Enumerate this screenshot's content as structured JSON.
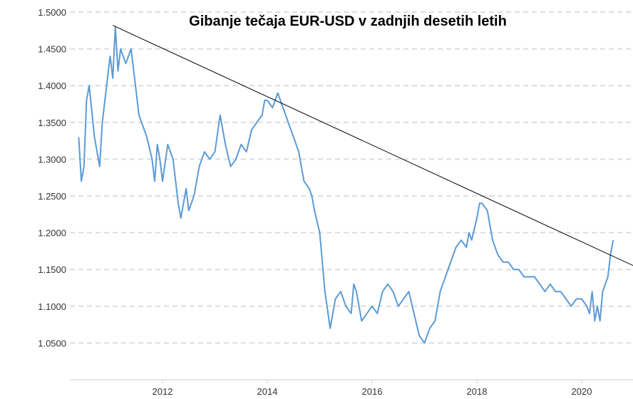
{
  "chart_data": {
    "type": "line",
    "title": "Gibanje tečaja EUR-USD v zadnjih desetih letih",
    "xlabel": "",
    "ylabel": "",
    "xlim": [
      2010.35,
      2020.65
    ],
    "ylim": [
      1.0,
      1.5
    ],
    "grid": true,
    "y_ticks": [
      "1.5000",
      "1.4500",
      "1.4000",
      "1.3500",
      "1.3000",
      "1.2500",
      "1.2000",
      "1.1500",
      "1.1000",
      "1.0500"
    ],
    "x_ticks": [
      "2012",
      "2014",
      "2016",
      "2018",
      "2020"
    ],
    "series": [
      {
        "color": "#5b9bd5",
        "x": [
          2010.4,
          2010.45,
          2010.5,
          2010.55,
          2010.6,
          2010.7,
          2010.8,
          2010.85,
          2010.9,
          2010.95,
          2011.0,
          2011.05,
          2011.1,
          2011.15,
          2011.2,
          2011.3,
          2011.4,
          2011.5,
          2011.55,
          2011.6,
          2011.7,
          2011.8,
          2011.85,
          2011.9,
          2011.95,
          2012.0,
          2012.1,
          2012.2,
          2012.3,
          2012.35,
          2012.4,
          2012.45,
          2012.5,
          2012.6,
          2012.7,
          2012.8,
          2012.9,
          2013.0,
          2013.1,
          2013.2,
          2013.3,
          2013.4,
          2013.5,
          2013.6,
          2013.7,
          2013.8,
          2013.9,
          2013.95,
          2014.0,
          2014.1,
          2014.2,
          2014.3,
          2014.35,
          2014.4,
          2014.5,
          2014.6,
          2014.7,
          2014.8,
          2014.85,
          2014.9,
          2015.0,
          2015.05,
          2015.1,
          2015.2,
          2015.3,
          2015.4,
          2015.5,
          2015.6,
          2015.65,
          2015.7,
          2015.8,
          2015.9,
          2016.0,
          2016.1,
          2016.2,
          2016.3,
          2016.4,
          2016.5,
          2016.6,
          2016.7,
          2016.8,
          2016.9,
          2017.0,
          2017.1,
          2017.2,
          2017.3,
          2017.4,
          2017.5,
          2017.6,
          2017.7,
          2017.8,
          2017.85,
          2017.9,
          2018.0,
          2018.05,
          2018.1,
          2018.2,
          2018.3,
          2018.4,
          2018.5,
          2018.6,
          2018.7,
          2018.8,
          2018.9,
          2019.0,
          2019.1,
          2019.2,
          2019.3,
          2019.4,
          2019.5,
          2019.6,
          2019.7,
          2019.8,
          2019.9,
          2020.0,
          2020.1,
          2020.15,
          2020.2,
          2020.25,
          2020.3,
          2020.35,
          2020.4,
          2020.45,
          2020.5,
          2020.55,
          2020.6
        ],
        "y": [
          1.33,
          1.27,
          1.29,
          1.38,
          1.4,
          1.33,
          1.29,
          1.35,
          1.38,
          1.41,
          1.44,
          1.41,
          1.48,
          1.42,
          1.45,
          1.43,
          1.45,
          1.39,
          1.36,
          1.35,
          1.33,
          1.3,
          1.27,
          1.32,
          1.3,
          1.27,
          1.32,
          1.3,
          1.24,
          1.22,
          1.24,
          1.26,
          1.23,
          1.25,
          1.29,
          1.31,
          1.3,
          1.31,
          1.36,
          1.32,
          1.29,
          1.3,
          1.32,
          1.31,
          1.34,
          1.35,
          1.36,
          1.38,
          1.38,
          1.37,
          1.39,
          1.37,
          1.36,
          1.35,
          1.33,
          1.31,
          1.27,
          1.26,
          1.25,
          1.23,
          1.2,
          1.16,
          1.12,
          1.07,
          1.11,
          1.12,
          1.1,
          1.09,
          1.13,
          1.12,
          1.08,
          1.09,
          1.1,
          1.09,
          1.12,
          1.13,
          1.12,
          1.1,
          1.11,
          1.12,
          1.09,
          1.06,
          1.05,
          1.07,
          1.08,
          1.12,
          1.14,
          1.16,
          1.18,
          1.19,
          1.18,
          1.2,
          1.19,
          1.22,
          1.24,
          1.24,
          1.23,
          1.19,
          1.17,
          1.16,
          1.16,
          1.15,
          1.15,
          1.14,
          1.14,
          1.14,
          1.13,
          1.12,
          1.13,
          1.12,
          1.12,
          1.11,
          1.1,
          1.11,
          1.11,
          1.1,
          1.09,
          1.12,
          1.08,
          1.1,
          1.08,
          1.12,
          1.13,
          1.14,
          1.17,
          1.19
        ]
      }
    ],
    "annotations": [
      {
        "type": "trendline",
        "color": "#000000",
        "x": [
          2011.05,
          2021.6
        ],
        "y": [
          1.482,
          1.135
        ]
      }
    ]
  }
}
